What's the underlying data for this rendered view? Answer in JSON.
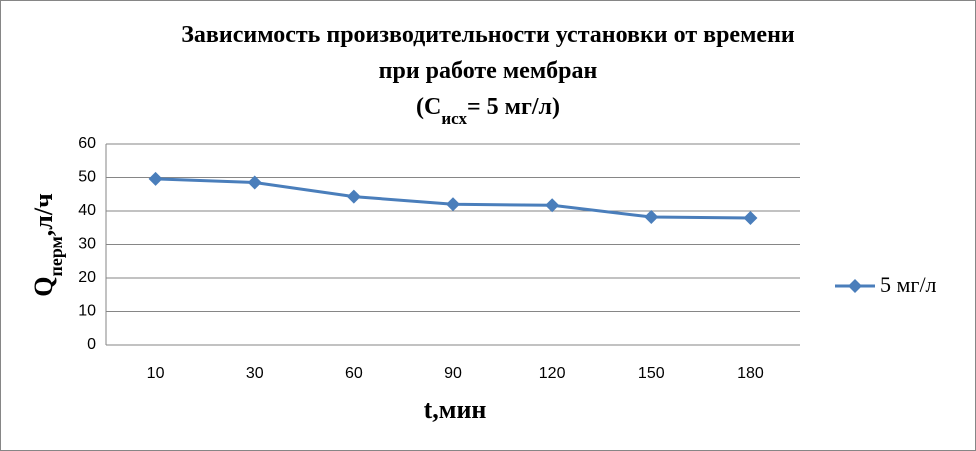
{
  "chart_data": {
    "type": "line",
    "title_lines": [
      "Зависимость производительности установки от времени",
      "при работе мембран"
    ],
    "title_formula": [
      "(C",
      "исх",
      "= 5 мг/л)"
    ],
    "xlabel": "t,мин",
    "ylabel": [
      "Q",
      "перм",
      ",л/ч"
    ],
    "categories": [
      "10",
      "30",
      "60",
      "90",
      "120",
      "150",
      "180"
    ],
    "series": [
      {
        "name": "5 мг/л",
        "color": "#4a7ebb",
        "values": [
          49.6,
          48.5,
          44.3,
          42,
          41.7,
          38.2,
          37.9
        ]
      }
    ],
    "ylim": [
      0,
      60
    ],
    "yticks": [
      0,
      10,
      20,
      30,
      40,
      50,
      60
    ],
    "grid": true,
    "legend": "right"
  }
}
